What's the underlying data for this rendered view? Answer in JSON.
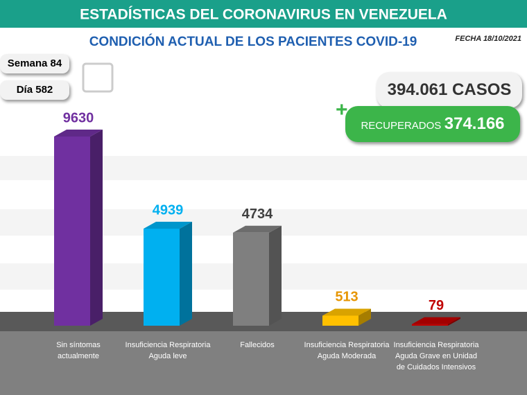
{
  "header": {
    "title": "ESTADÍSTICAS DEL CORONAVIRUS EN VENEZUELA",
    "subtitle": "CONDICIÓN ACTUAL DE LOS PACIENTES COVID-19",
    "date": "FECHA 18/10/2021"
  },
  "week": "Semana 84",
  "day": "Día 582",
  "cases": "394.061 CASOS",
  "recovered_label": "RECUPERADOS",
  "recovered_value": "374.166",
  "chart_data": {
    "type": "bar",
    "categories": [
      "Sin síntomas actualmente",
      "Insuficiencia Respiratoria Aguda leve",
      "Fallecidos",
      "Insuficiencia Respiratoria Aguda Moderada",
      "Insuficiencia Respiratoria Aguda Grave en Unidad de Cuidados Intensivos"
    ],
    "values": [
      9630,
      4939,
      4734,
      513,
      79
    ],
    "colors": [
      "#7030a0",
      "#00b0f0",
      "#7f7f7f",
      "#ffc000",
      "#c00000"
    ],
    "label_colors": [
      "#7030a0",
      "#00b0f0",
      "#404040",
      "#e69500",
      "#c00000"
    ]
  }
}
